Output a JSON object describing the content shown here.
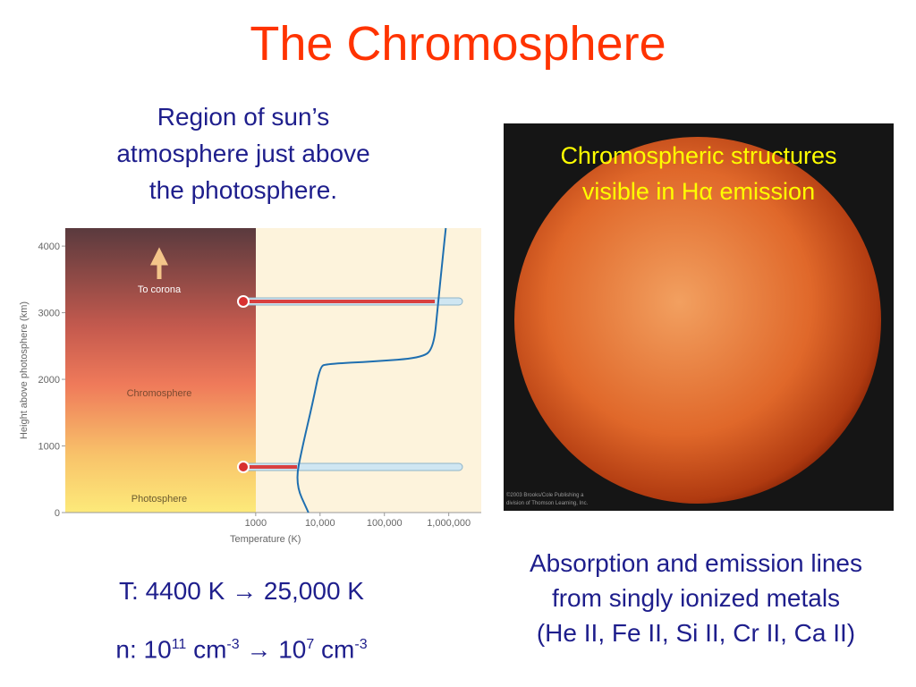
{
  "title": "The Chromosphere",
  "left_text": [
    "Region of sun’s",
    "atmosphere just above",
    "the photosphere."
  ],
  "temperature_line": "T: 4400 K → 25,000 K",
  "density_line": [
    "n: 10",
    "11",
    " cm",
    "-3",
    " → 10",
    "7",
    " cm",
    "-3"
  ],
  "image_caption": [
    "Chromospheric structures",
    "visible in Hα emission"
  ],
  "image_credit": [
    "©2003 Brooks/Cole Publishing a",
    "division of Thomson Learning, Inc."
  ],
  "right_text": [
    "Absorption and emission lines",
    "from singly ionized metals",
    "(He II, Fe II, Si II, Cr II, Ca II)"
  ],
  "chart_data": {
    "type": "line",
    "x_label": "Temperature (K)",
    "y_label": "Height above photosphere (km)",
    "log_x": true,
    "xlim": [
      1.1,
      3200000
    ],
    "xticks": [
      1000,
      {
        "value": 10000,
        "label": "10,000"
      },
      {
        "value": 100000,
        "label": "100,000"
      },
      {
        "value": 1000000,
        "label": "1,000,000"
      }
    ],
    "ylim": [
      0,
      4270
    ],
    "yticks": [
      0,
      1000,
      2000,
      3000,
      4000
    ],
    "annotations": [
      "To corona",
      "Chromosphere",
      "Photosphere"
    ],
    "series": [
      {
        "color": "#1f6fb0",
        "x": [
          6600,
          4100,
          5300,
          7700,
          10000,
          12500,
          72000,
          360000,
          580000,
          680000,
          800000,
          900000
        ],
        "values": [
          0,
          440,
          980,
          1650,
          2190,
          2230,
          2270,
          2320,
          2450,
          3120,
          3800,
          4270
        ]
      }
    ]
  }
}
